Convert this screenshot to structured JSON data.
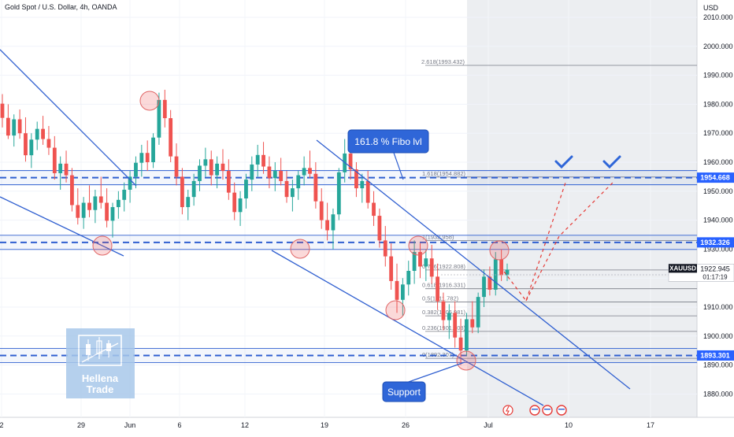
{
  "header": {
    "symbol_title": "Gold Spot / U.S. Dollar, 4h, OANDA"
  },
  "price_axis": {
    "currency": "USD",
    "ticks": [
      "2010.000",
      "2000.000",
      "1990.000",
      "1980.000",
      "1970.000",
      "1960.000",
      "1950.000",
      "1940.000",
      "1930.000",
      "1920.000",
      "1910.000",
      "1900.000",
      "1890.000",
      "1880.000"
    ]
  },
  "time_axis": {
    "ticks": [
      "2",
      "29",
      "Jun",
      "6",
      "12",
      "19",
      "26",
      "Jul",
      "10",
      "17"
    ]
  },
  "badges": {
    "level_1954": "1954.668",
    "level_1932": "1932.326",
    "level_1893": "1893.301",
    "last_symbol": "XAUUSD",
    "last_price": "1922.945",
    "countdown": "01:17:19"
  },
  "annotations": {
    "fibo_callout": "161.8 % Fibo lvl",
    "support_callout": "Support",
    "watermark_line1": "Hellena",
    "watermark_line2": "Trade"
  },
  "fib_labels": [
    "2.618(1993.432)",
    "1.618(1954.882)",
    "1(1932.958)",
    "0.786(1922.808)",
    "0.618(1916.331)",
    "0.5(1911.782)",
    "0.382(1906.981)",
    "0.236(1901.608)",
    "0(1892.307)"
  ],
  "colors": {
    "bull": "#26a69a",
    "bear": "#ef5350",
    "line": "#2f5fd0",
    "badge": "#2962ff",
    "dashed_projection": "#e53935"
  },
  "chart_data": {
    "type": "candlestick",
    "title": "Gold Spot / U.S. Dollar, 4h, OANDA",
    "y_unit": "USD",
    "ylim": [
      1876,
      2014
    ],
    "x_ticks": [
      "2",
      "29",
      "Jun",
      "6",
      "12",
      "19",
      "26",
      "Jul",
      "10",
      "17"
    ],
    "horizontal_levels": [
      1954.668,
      1932.326,
      1893.301
    ],
    "last_price": 1922.945,
    "fibonacci_extension": [
      {
        "ratio": 2.618,
        "price": 1993.432
      },
      {
        "ratio": 1.618,
        "price": 1954.882
      },
      {
        "ratio": 1,
        "price": 1932.958
      },
      {
        "ratio": 0.786,
        "price": 1922.808
      },
      {
        "ratio": 0.618,
        "price": 1916.331
      },
      {
        "ratio": 0.5,
        "price": 1911.782
      },
      {
        "ratio": 0.382,
        "price": 1906.981
      },
      {
        "ratio": 0.236,
        "price": 1901.608
      },
      {
        "ratio": 0,
        "price": 1892.307
      }
    ],
    "projections": [
      [
        [
          1920,
          1909
        ],
        [
          1955,
          1955
        ]
      ],
      [
        [
          1909,
          1909
        ],
        [
          1955,
          1955
        ]
      ]
    ],
    "annotations": [
      "161.8 % Fibo lvl",
      "Support"
    ],
    "candles": [
      [
        1980.2,
        1983.5,
        1972.0,
        1975.3
      ],
      [
        1975.3,
        1980.0,
        1968.0,
        1969.2
      ],
      [
        1969.2,
        1976.5,
        1965.4,
        1974.8
      ],
      [
        1974.8,
        1978.2,
        1968.1,
        1970.0
      ],
      [
        1970.0,
        1975.5,
        1960.2,
        1962.4
      ],
      [
        1962.4,
        1970.0,
        1958.0,
        1967.8
      ],
      [
        1967.8,
        1974.0,
        1964.2,
        1971.5
      ],
      [
        1971.5,
        1976.0,
        1966.0,
        1968.0
      ],
      [
        1968.0,
        1972.5,
        1962.5,
        1965.0
      ],
      [
        1965.0,
        1969.0,
        1954.0,
        1956.2
      ],
      [
        1956.2,
        1962.0,
        1950.5,
        1959.5
      ],
      [
        1959.5,
        1964.0,
        1953.0,
        1955.5
      ],
      [
        1955.5,
        1958.0,
        1943.0,
        1945.2
      ],
      [
        1945.2,
        1951.0,
        1938.5,
        1940.8
      ],
      [
        1940.8,
        1948.0,
        1937.0,
        1946.0
      ],
      [
        1946.0,
        1952.0,
        1941.0,
        1943.5
      ],
      [
        1943.5,
        1950.5,
        1939.0,
        1948.2
      ],
      [
        1948.2,
        1955.0,
        1944.0,
        1946.0
      ],
      [
        1946.0,
        1951.0,
        1937.5,
        1939.8
      ],
      [
        1939.8,
        1946.0,
        1934.0,
        1944.5
      ],
      [
        1944.5,
        1950.0,
        1940.5,
        1947.0
      ],
      [
        1947.0,
        1953.0,
        1943.0,
        1950.5
      ],
      [
        1950.5,
        1957.0,
        1946.0,
        1955.0
      ],
      [
        1955.0,
        1962.0,
        1951.0,
        1959.8
      ],
      [
        1959.8,
        1966.0,
        1955.0,
        1963.2
      ],
      [
        1963.2,
        1967.5,
        1957.0,
        1960.0
      ],
      [
        1960.0,
        1970.0,
        1958.0,
        1968.5
      ],
      [
        1968.5,
        1984.0,
        1966.0,
        1981.5
      ],
      [
        1981.5,
        1985.0,
        1972.0,
        1975.2
      ],
      [
        1975.2,
        1978.0,
        1960.0,
        1962.0
      ],
      [
        1962.0,
        1966.5,
        1952.0,
        1955.0
      ],
      [
        1955.0,
        1958.0,
        1942.0,
        1944.5
      ],
      [
        1944.5,
        1950.5,
        1940.0,
        1948.0
      ],
      [
        1948.0,
        1956.0,
        1945.0,
        1953.5
      ],
      [
        1953.5,
        1961.0,
        1950.0,
        1958.8
      ],
      [
        1958.8,
        1965.0,
        1955.0,
        1961.0
      ],
      [
        1961.0,
        1964.0,
        1952.0,
        1955.5
      ],
      [
        1955.5,
        1962.0,
        1951.0,
        1959.5
      ],
      [
        1959.5,
        1964.5,
        1954.0,
        1957.0
      ],
      [
        1957.0,
        1961.0,
        1947.0,
        1949.5
      ],
      [
        1949.5,
        1953.0,
        1940.0,
        1942.8
      ],
      [
        1942.8,
        1950.0,
        1938.0,
        1947.5
      ],
      [
        1947.5,
        1956.0,
        1944.0,
        1954.0
      ],
      [
        1954.0,
        1962.0,
        1950.0,
        1959.2
      ],
      [
        1959.2,
        1966.0,
        1955.0,
        1962.5
      ],
      [
        1962.5,
        1967.0,
        1956.0,
        1958.5
      ],
      [
        1958.5,
        1962.0,
        1951.0,
        1954.5
      ],
      [
        1954.5,
        1960.0,
        1950.0,
        1957.0
      ],
      [
        1957.0,
        1961.5,
        1952.0,
        1953.5
      ],
      [
        1953.5,
        1957.0,
        1946.0,
        1948.0
      ],
      [
        1948.0,
        1954.0,
        1943.0,
        1951.0
      ],
      [
        1951.0,
        1957.0,
        1947.0,
        1955.5
      ],
      [
        1955.5,
        1962.0,
        1952.0,
        1958.0
      ],
      [
        1958.0,
        1964.0,
        1954.5,
        1956.0
      ],
      [
        1956.0,
        1960.0,
        1944.0,
        1946.5
      ],
      [
        1946.5,
        1951.0,
        1937.0,
        1940.0
      ],
      [
        1940.0,
        1946.0,
        1933.0,
        1936.5
      ],
      [
        1936.5,
        1944.0,
        1930.0,
        1942.0
      ],
      [
        1942.0,
        1958.0,
        1940.0,
        1956.5
      ],
      [
        1956.5,
        1968.0,
        1953.0,
        1963.0
      ],
      [
        1963.0,
        1966.0,
        1954.0,
        1957.5
      ],
      [
        1957.5,
        1960.0,
        1948.0,
        1951.0
      ],
      [
        1951.0,
        1956.0,
        1946.0,
        1953.5
      ],
      [
        1953.5,
        1957.0,
        1944.0,
        1946.0
      ],
      [
        1946.0,
        1950.0,
        1938.0,
        1941.5
      ],
      [
        1941.5,
        1944.0,
        1930.5,
        1933.0
      ],
      [
        1933.0,
        1938.0,
        1924.0,
        1927.5
      ],
      [
        1927.5,
        1932.0,
        1916.0,
        1919.0
      ],
      [
        1919.0,
        1925.0,
        1908.0,
        1912.5
      ],
      [
        1912.5,
        1920.0,
        1907.0,
        1917.8
      ],
      [
        1917.8,
        1926.0,
        1914.0,
        1922.5
      ],
      [
        1922.5,
        1933.0,
        1918.0,
        1929.0
      ],
      [
        1929.0,
        1932.0,
        1920.0,
        1924.0
      ],
      [
        1924.0,
        1930.0,
        1919.0,
        1926.8
      ],
      [
        1926.8,
        1931.5,
        1918.0,
        1920.5
      ],
      [
        1920.5,
        1925.0,
        1909.0,
        1912.0
      ],
      [
        1912.0,
        1915.0,
        1902.0,
        1905.5
      ],
      [
        1905.5,
        1911.0,
        1899.0,
        1908.0
      ],
      [
        1908.0,
        1912.0,
        1896.0,
        1899.5
      ],
      [
        1899.5,
        1906.0,
        1890.0,
        1895.0
      ],
      [
        1895.0,
        1908.0,
        1893.0,
        1905.8
      ],
      [
        1905.8,
        1912.0,
        1901.0,
        1903.0
      ],
      [
        1903.0,
        1915.0,
        1901.0,
        1913.5
      ],
      [
        1913.5,
        1923.0,
        1910.0,
        1920.5
      ],
      [
        1920.5,
        1924.0,
        1914.0,
        1916.0
      ],
      [
        1916.0,
        1929.0,
        1914.0,
        1926.5
      ],
      [
        1926.5,
        1930.0,
        1919.0,
        1921.0
      ],
      [
        1921.0,
        1925.0,
        1919.0,
        1922.945
      ]
    ]
  }
}
